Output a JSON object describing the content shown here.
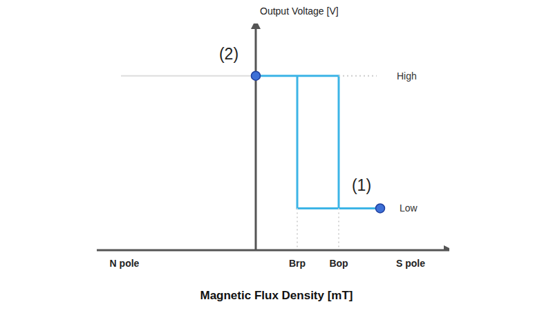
{
  "chart_data": {
    "type": "line",
    "x_label": "Magnetic Flux Density [mT]",
    "y_label": "Output Voltage [V]",
    "xlim": [
      -11.5,
      14
    ],
    "ylim": [
      0,
      6.5
    ],
    "xticks": [
      {
        "value": -9.5,
        "label": "N pole"
      },
      {
        "value": 3,
        "label": "Brp"
      },
      {
        "value": 6,
        "label": "Bop"
      },
      {
        "value": 11.2,
        "label": "S pole"
      }
    ],
    "tick_labels": "x",
    "grid": false,
    "series": [
      {
        "color": "#3cb4e6",
        "line_style": "solid",
        "x": [
          0,
          6,
          6,
          3,
          3,
          3,
          9
        ],
        "values": [
          5,
          5,
          1.2,
          1.2,
          5,
          1.2,
          1.2
        ]
      },
      {
        "color": "#dddddd",
        "line_style": "solid",
        "x": [
          -9.75,
          0
        ],
        "values": [
          5,
          5
        ]
      },
      {
        "color": "#cccccc",
        "line_style": "dotted",
        "x": [
          6,
          8.75
        ],
        "values": [
          5,
          5
        ]
      },
      {
        "color": "#d5d5d5",
        "line_style": "dotted",
        "x": [
          3,
          3
        ],
        "values": [
          1.2,
          0
        ]
      },
      {
        "color": "#d5d5d5",
        "line_style": "dotted",
        "x": [
          6,
          6
        ],
        "values": [
          1.2,
          0
        ]
      }
    ],
    "points": [
      {
        "label": "(1)",
        "x": 9,
        "y": 1.2,
        "color": "#3d6fd6",
        "marker": "circle"
      },
      {
        "label": "(2)",
        "x": 0,
        "y": 5,
        "color": "#3d6fd6",
        "marker": "circle"
      }
    ],
    "annotations": [
      {
        "text": "High",
        "x": 10.2,
        "y": 5
      },
      {
        "text": "Low",
        "x": 10.4,
        "y": 1.2
      }
    ]
  }
}
